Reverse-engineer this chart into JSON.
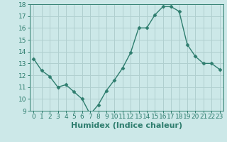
{
  "x": [
    0,
    1,
    2,
    3,
    4,
    5,
    6,
    7,
    8,
    9,
    10,
    11,
    12,
    13,
    14,
    15,
    16,
    17,
    18,
    19,
    20,
    21,
    22,
    23
  ],
  "y": [
    13.4,
    12.4,
    11.9,
    11.0,
    11.2,
    10.6,
    10.0,
    8.7,
    9.5,
    10.7,
    11.6,
    12.6,
    13.9,
    16.0,
    16.0,
    17.1,
    17.8,
    17.8,
    17.4,
    14.6,
    13.6,
    13.0,
    13.0,
    12.5
  ],
  "xlabel": "Humidex (Indice chaleur)",
  "ylim": [
    9,
    18
  ],
  "xlim": [
    -0.5,
    23.5
  ],
  "yticks": [
    9,
    10,
    11,
    12,
    13,
    14,
    15,
    16,
    17,
    18
  ],
  "xticks": [
    0,
    1,
    2,
    3,
    4,
    5,
    6,
    7,
    8,
    9,
    10,
    11,
    12,
    13,
    14,
    15,
    16,
    17,
    18,
    19,
    20,
    21,
    22,
    23
  ],
  "line_color": "#2e7d6e",
  "marker": "D",
  "marker_size": 2.5,
  "bg_color": "#cce8e8",
  "grid_color": "#b0cfcf",
  "xlabel_fontsize": 8,
  "tick_fontsize": 6.5
}
